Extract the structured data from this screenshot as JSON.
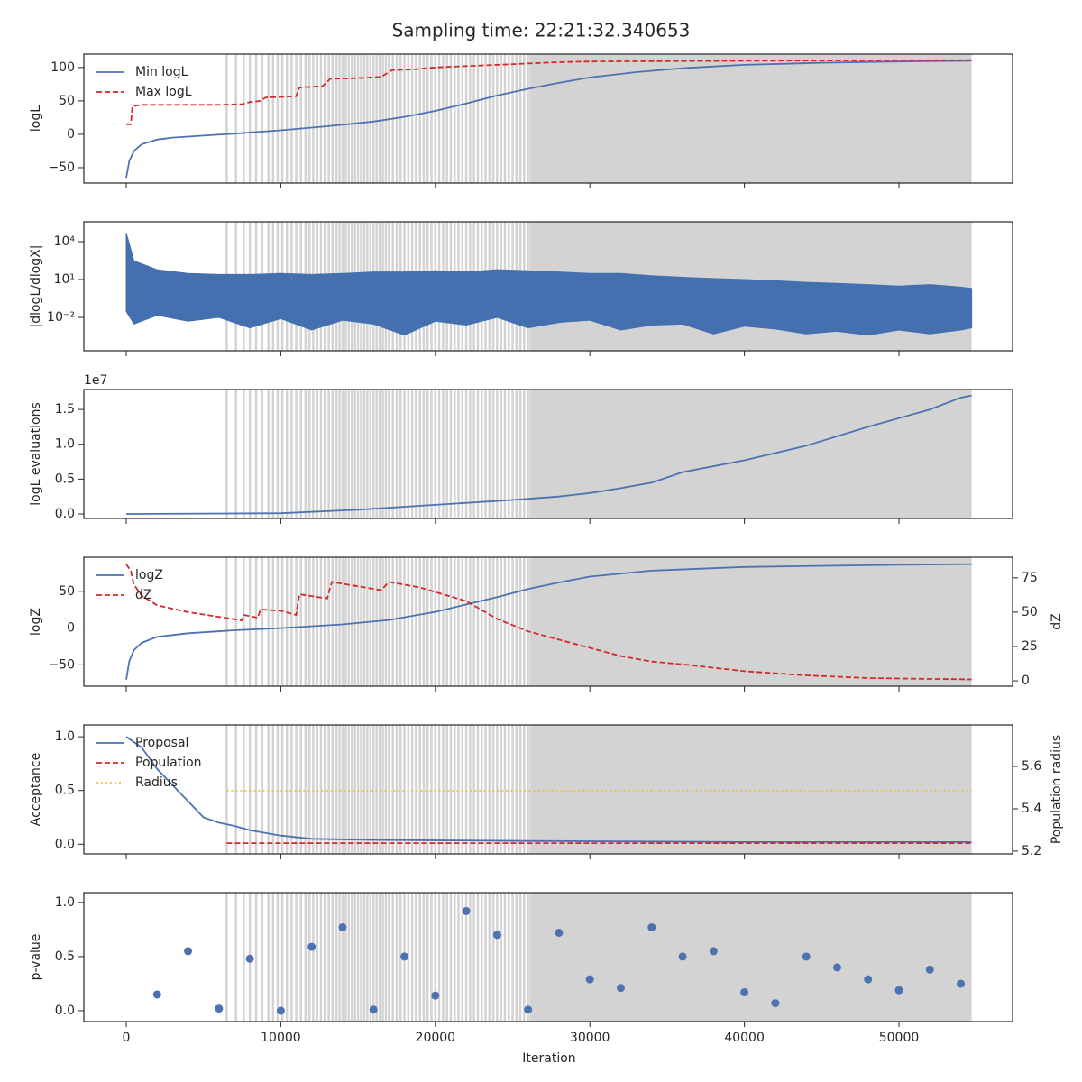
{
  "title": "Sampling time: 22:21:32.340653",
  "xlabel": "Iteration",
  "xlim": [
    -2742,
    57350
  ],
  "xticks": [
    0,
    10000,
    20000,
    30000,
    40000,
    50000
  ],
  "shading": {
    "color": "#d3d3d3",
    "lines": [
      6500,
      7100,
      7600,
      8000,
      8400,
      8800,
      9200,
      9500,
      9800,
      10100,
      10400,
      10700,
      11000,
      11300,
      11600,
      11850,
      12100,
      12350,
      12600,
      12850,
      13100,
      13350,
      13600,
      13800,
      14000,
      14200,
      14400,
      14600,
      14800,
      15000,
      15200,
      15400,
      15600,
      15800,
      16000,
      16200,
      16400,
      16600,
      16800,
      17000,
      17250,
      17500,
      17750,
      18000,
      18250,
      18500,
      18750,
      19000,
      19250,
      19500,
      19750,
      20000,
      20250,
      20500,
      20750,
      21000,
      21250,
      21500,
      21750,
      22000,
      22250,
      22500,
      22750,
      23000,
      23250,
      23500,
      23750,
      24000,
      24250,
      24500,
      24750,
      25000,
      25250,
      25500,
      25750,
      26000
    ],
    "span": [
      26100,
      54700
    ]
  },
  "chart_data": [
    {
      "type": "line",
      "ylabel": "logL",
      "ylim": [
        -73,
        120
      ],
      "yticks": [
        {
          "value": -50,
          "label": "−50"
        },
        0,
        50,
        100
      ],
      "legend": "upper left",
      "series": [
        {
          "name": "Min logL",
          "color": "#4c72b0",
          "style": "solid",
          "x": [
            0,
            200,
            500,
            1000,
            2000,
            3000,
            5000,
            7000,
            10000,
            13000,
            16000,
            18000,
            20000,
            22000,
            24000,
            26000,
            28000,
            30000,
            33000,
            36000,
            40000,
            45000,
            50000,
            54700
          ],
          "values": [
            -65,
            -40,
            -25,
            -15,
            -8,
            -5,
            -2,
            1,
            6,
            12,
            19,
            26,
            35,
            46,
            58,
            68,
            77,
            85,
            93,
            99,
            104,
            107,
            109,
            110
          ]
        },
        {
          "name": "Max logL",
          "color": "#d62728",
          "style": "dashed",
          "x": [
            0,
            300,
            400,
            1000,
            6000,
            7500,
            8000,
            8700,
            9000,
            11000,
            11200,
            12700,
            13200,
            15000,
            16500,
            17200,
            18500,
            20000,
            22000,
            24000,
            26000,
            28000,
            30000,
            35000,
            40000,
            54700
          ],
          "values": [
            15,
            15,
            42,
            44,
            44,
            45,
            48,
            50,
            55,
            57,
            70,
            72,
            83,
            84,
            86,
            96,
            97,
            100,
            102,
            104,
            106,
            108,
            109,
            109.5,
            110,
            111
          ]
        }
      ]
    },
    {
      "type": "area",
      "ylabel": "|dlogL/dlogX|",
      "log_scale": true,
      "ylim": [
        2.3e-05,
        370000.0
      ],
      "yticks": [
        {
          "value": 0.01,
          "label": "10⁻²"
        },
        {
          "value": 10,
          "label": "10¹"
        },
        {
          "value": 10000,
          "label": "10⁴"
        }
      ],
      "color": "#4470b0",
      "x": [
        0,
        500,
        2000,
        4000,
        6000,
        8000,
        10000,
        12000,
        14000,
        16000,
        18000,
        20000,
        22000,
        24000,
        26000,
        28000,
        30000,
        32000,
        34000,
        36000,
        38000,
        40000,
        42000,
        44000,
        46000,
        48000,
        50000,
        52000,
        54000,
        54700
      ],
      "upper": [
        50000.0,
        300.0,
        60,
        30,
        25,
        25,
        30,
        25,
        30,
        40,
        40,
        50,
        40,
        60,
        50,
        40,
        30,
        30,
        20,
        15,
        12,
        10,
        8,
        6,
        5,
        4,
        3,
        4,
        2.5,
        2
      ],
      "lower": [
        0.03,
        0.003,
        0.015,
        0.005,
        0.01,
        0.0015,
        0.008,
        0.001,
        0.006,
        0.003,
        0.0004,
        0.005,
        0.0025,
        0.01,
        0.0015,
        0.004,
        0.006,
        0.001,
        0.0025,
        0.003,
        0.0005,
        0.002,
        0.0012,
        0.0005,
        0.0008,
        0.0004,
        0.001,
        0.0005,
        0.001,
        0.0015
      ]
    },
    {
      "type": "line",
      "ylabel": "logL evaluations",
      "offset_text": "1e7",
      "ylim": [
        -0.065,
        1.786
      ],
      "yticks": [
        {
          "value": 0,
          "label": "0.0"
        },
        {
          "value": 0.5,
          "label": "0.5"
        },
        {
          "value": 1,
          "label": "1.0"
        },
        {
          "value": 1.5,
          "label": "1.5"
        }
      ],
      "series": [
        {
          "color": "#4c72b0",
          "style": "solid",
          "x": [
            0,
            10000,
            15000,
            20000,
            25000,
            28000,
            30000,
            32000,
            34000,
            36000,
            40000,
            44000,
            48000,
            52000,
            54000,
            54700
          ],
          "values": [
            0,
            0.01,
            0.06,
            0.13,
            0.2,
            0.25,
            0.3,
            0.37,
            0.45,
            0.6,
            0.77,
            0.98,
            1.25,
            1.5,
            1.67,
            1.7
          ]
        }
      ]
    },
    {
      "type": "line",
      "ylabel": "logZ",
      "y2label": "dZ",
      "ylim": [
        -79,
        96.3
      ],
      "yticks": [
        {
          "value": -50,
          "label": "−50"
        },
        0,
        50
      ],
      "y2lim": [
        -3.9,
        90
      ],
      "y2ticks": [
        0,
        25,
        50,
        75
      ],
      "legend": "upper left",
      "series": [
        {
          "name": "logZ",
          "color": "#4c72b0",
          "style": "solid",
          "x": [
            0,
            200,
            500,
            1000,
            2000,
            4000,
            7000,
            10000,
            14000,
            17000,
            20000,
            24000,
            26000,
            28000,
            30000,
            34000,
            40000,
            50000,
            54700
          ],
          "values": [
            -70,
            -45,
            -30,
            -20,
            -12,
            -7,
            -3,
            0,
            5,
            11,
            22,
            42,
            53,
            62,
            70,
            78,
            83,
            86,
            87
          ]
        },
        {
          "name": "dZ",
          "color": "#d62728",
          "style": "dashed",
          "axis": "y2",
          "x": [
            0,
            300,
            500,
            1000,
            2000,
            4000,
            7500,
            7600,
            8500,
            8700,
            10000,
            11000,
            11200,
            13000,
            13300,
            16500,
            17000,
            19000,
            22000,
            24000,
            26000,
            28000,
            30000,
            32000,
            34000,
            36000,
            40000,
            44000,
            48000,
            54700
          ],
          "values": [
            85,
            80,
            70,
            62,
            55,
            50,
            44,
            48,
            46,
            52,
            51,
            48,
            63,
            60,
            72,
            66,
            72,
            68,
            58,
            45,
            36,
            30,
            24,
            18,
            14,
            12,
            7,
            4,
            2,
            1
          ]
        }
      ]
    },
    {
      "type": "line",
      "ylabel": "Acceptance",
      "y2label": "Population radius",
      "ylim": [
        -0.09,
        1.11
      ],
      "yticks": [
        {
          "value": 0,
          "label": "0.0"
        },
        {
          "value": 0.5,
          "label": "0.5"
        },
        {
          "value": 1,
          "label": "1.0"
        }
      ],
      "y2lim": [
        5.187,
        5.796
      ],
      "y2ticks": [
        5.2,
        5.4,
        5.6
      ],
      "legend": "upper left",
      "series": [
        {
          "name": "Proposal",
          "color": "#4c72b0",
          "style": "solid",
          "x": [
            0,
            1000,
            2000,
            3000,
            4000,
            5000,
            6000,
            7000,
            8000,
            10000,
            12000,
            16000,
            26000,
            40000,
            54700
          ],
          "values": [
            1.0,
            0.9,
            0.7,
            0.55,
            0.4,
            0.25,
            0.2,
            0.17,
            0.13,
            0.08,
            0.05,
            0.04,
            0.03,
            0.02,
            0.02
          ]
        },
        {
          "name": "Population",
          "color": "#d62728",
          "style": "dashed",
          "x": [
            6500,
            54700
          ],
          "values": [
            0.01,
            0.01
          ]
        },
        {
          "name": "Radius",
          "color": "#f0c030",
          "style": "dotted",
          "axis": "y2",
          "x": [
            6500,
            54700
          ],
          "values": [
            5.485,
            5.485
          ]
        }
      ]
    },
    {
      "type": "scatter",
      "ylabel": "p-value",
      "ylim": [
        -0.1,
        1.09
      ],
      "yticks": [
        {
          "value": 0,
          "label": "0.0"
        },
        {
          "value": 0.5,
          "label": "0.5"
        },
        {
          "value": 1,
          "label": "1.0"
        }
      ],
      "color": "#4c72b0",
      "x": [
        2000,
        4000,
        6000,
        8000,
        10000,
        12000,
        14000,
        16000,
        18000,
        20000,
        22000,
        24000,
        26000,
        28000,
        30000,
        32000,
        34000,
        36000,
        38000,
        40000,
        42000,
        44000,
        46000,
        48000,
        50000,
        52000,
        54000
      ],
      "values": [
        0.15,
        0.55,
        0.02,
        0.48,
        0.0,
        0.59,
        0.77,
        0.01,
        0.5,
        0.14,
        0.92,
        0.7,
        0.01,
        0.72,
        0.29,
        0.21,
        0.77,
        0.5,
        0.55,
        0.17,
        0.07,
        0.5,
        0.4,
        0.29,
        0.19,
        0.38,
        0.25
      ]
    }
  ]
}
